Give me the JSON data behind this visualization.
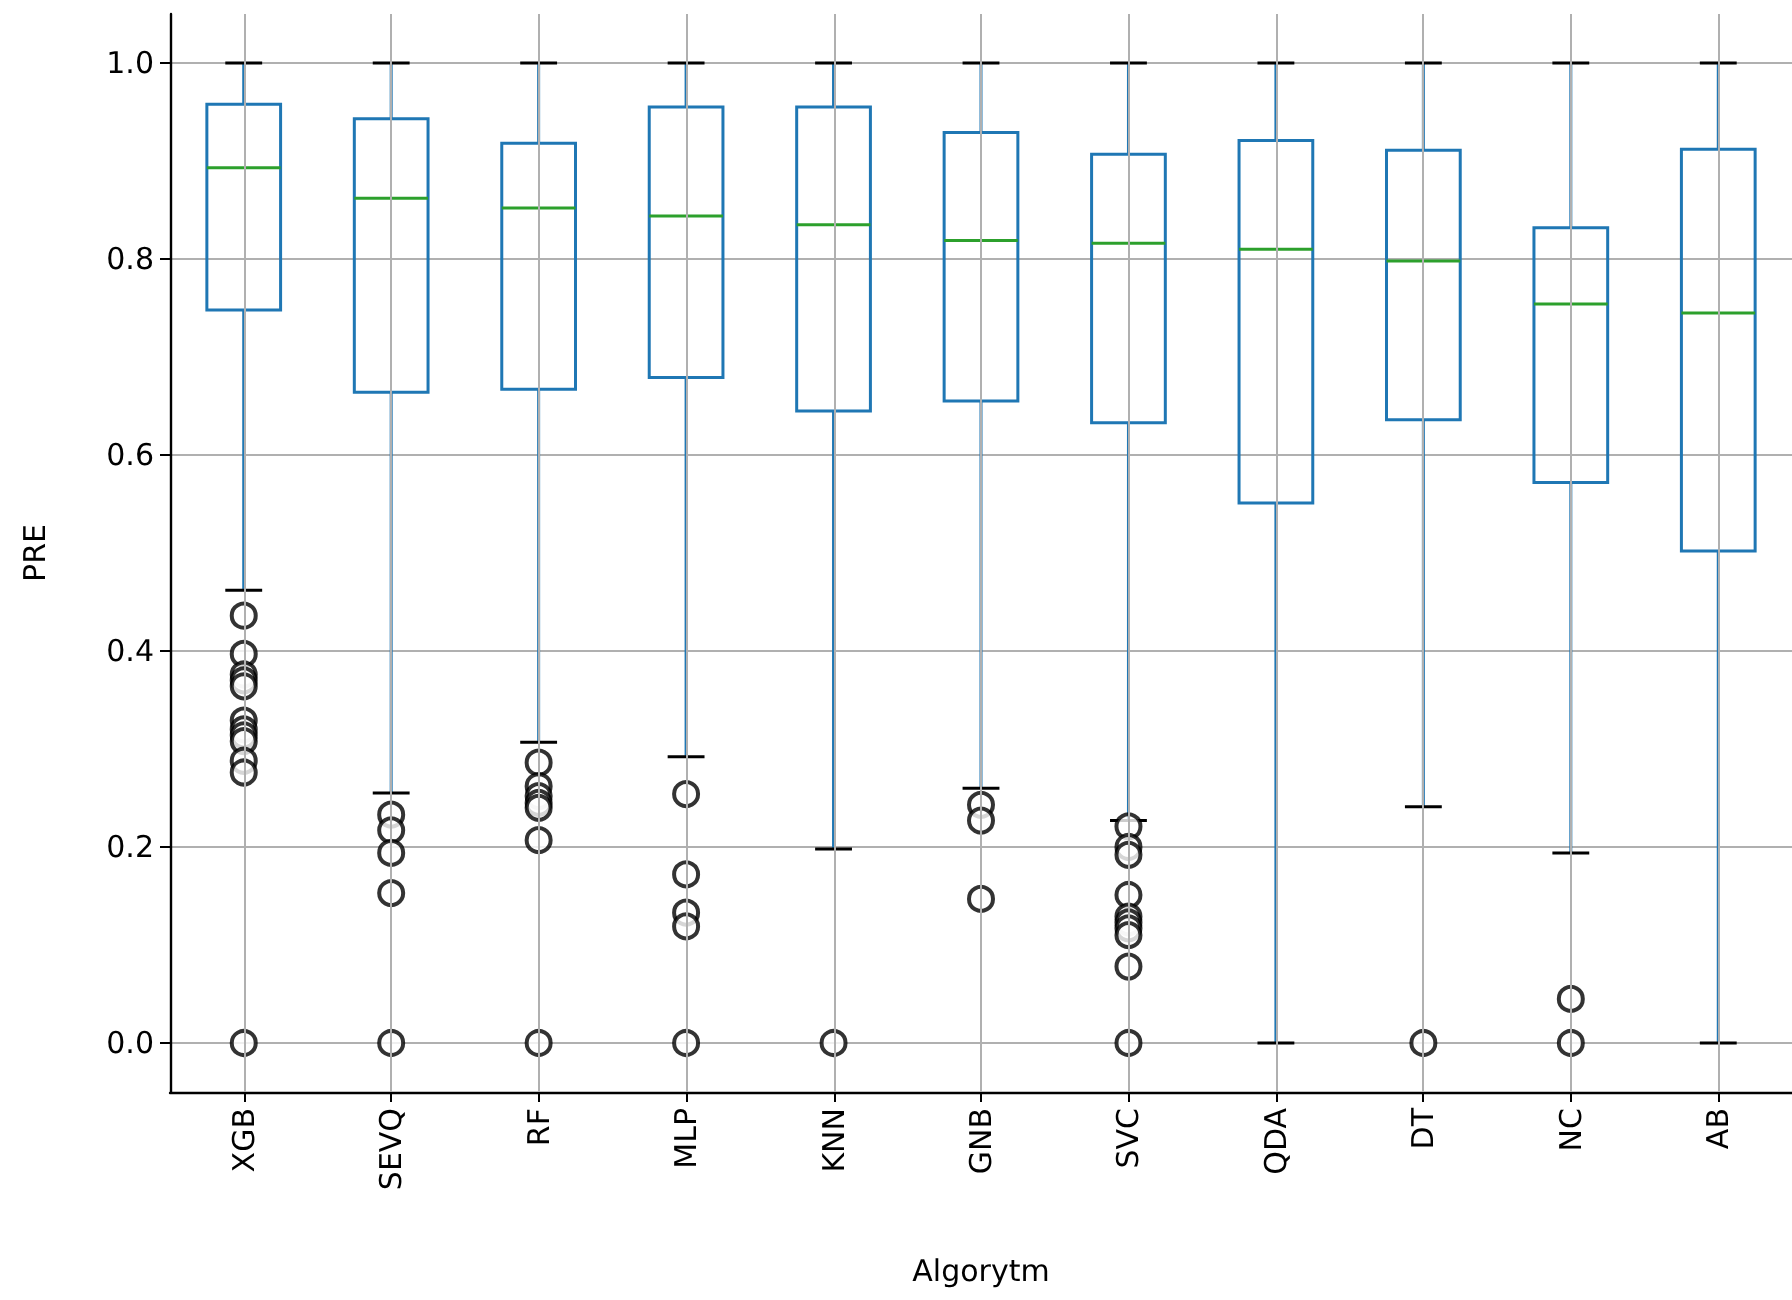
{
  "chart_data": {
    "type": "box",
    "xlabel": "Algorytm",
    "ylabel": "PRE",
    "categories": [
      "XGB",
      "SEVQ",
      "RF",
      "MLP",
      "KNN",
      "GNB",
      "SVC",
      "QDA",
      "DT",
      "NC",
      "AB"
    ],
    "ylim": [
      -0.05,
      1.05
    ],
    "yticks": [
      {
        "value": 0,
        "label": "0.0"
      },
      {
        "value": 0.2,
        "label": "0.2"
      },
      {
        "value": 0.4,
        "label": "0.4"
      },
      {
        "value": 0.6,
        "label": "0.6"
      },
      {
        "value": 0.8,
        "label": "0.8"
      },
      {
        "value": 1,
        "label": "1.0"
      }
    ],
    "grid": true,
    "marker": "circle",
    "series": [
      {
        "color": "#1f77b4",
        "boxes": [
          {
            "low": 0.462,
            "q1": 0.748,
            "median": 0.893,
            "q3": 0.958,
            "high": 1.0,
            "outliers": [
              0.436,
              0.397,
              0.376,
              0.37,
              0.364,
              0.329,
              0.32,
              0.314,
              0.308,
              0.288,
              0.276,
              0
            ]
          },
          {
            "low": 0.255,
            "q1": 0.664,
            "median": 0.862,
            "q3": 0.943,
            "high": 1.0,
            "outliers": [
              0.233,
              0.217,
              0.194,
              0.153,
              0
            ]
          },
          {
            "low": 0.307,
            "q1": 0.667,
            "median": 0.852,
            "q3": 0.918,
            "high": 1.0,
            "outliers": [
              0.286,
              0.262,
              0.252,
              0.245,
              0.24,
              0.207,
              0
            ]
          },
          {
            "low": 0.292,
            "q1": 0.679,
            "median": 0.844,
            "q3": 0.955,
            "high": 1.0,
            "outliers": [
              0.254,
              0.172,
              0.133,
              0.119,
              0
            ]
          },
          {
            "low": 0.198,
            "q1": 0.645,
            "median": 0.835,
            "q3": 0.955,
            "high": 1.0,
            "outliers": [
              0
            ]
          },
          {
            "low": 0.26,
            "q1": 0.655,
            "median": 0.819,
            "q3": 0.929,
            "high": 1.0,
            "outliers": [
              0.243,
              0.227,
              0.147
            ]
          },
          {
            "low": 0.227,
            "q1": 0.633,
            "median": 0.816,
            "q3": 0.907,
            "high": 1.0,
            "outliers": [
              0.221,
              0.2,
              0.192,
              0.151,
              0.129,
              0.123,
              0.117,
              0.11,
              0.078,
              0
            ]
          },
          {
            "low": 0,
            "q1": 0.551,
            "median": 0.81,
            "q3": 0.921,
            "high": 1.0
          },
          {
            "low": 0.241,
            "q1": 0.636,
            "median": 0.798,
            "q3": 0.911,
            "high": 1.0,
            "outliers": [
              0
            ]
          },
          {
            "low": 0.194,
            "q1": 0.572,
            "median": 0.754,
            "q3": 0.832,
            "high": 1.0,
            "outliers": [
              0.045,
              0
            ]
          },
          {
            "low": 0,
            "q1": 0.502,
            "median": 0.745,
            "q3": 0.912,
            "high": 1.0
          }
        ]
      }
    ]
  }
}
